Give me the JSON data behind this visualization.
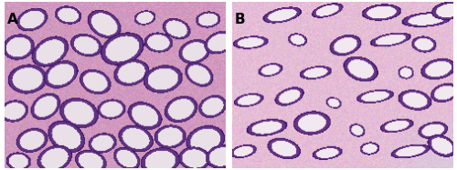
{
  "figure_width": 5.0,
  "figure_height": 1.87,
  "dpi": 100,
  "panel_a_label": "A",
  "panel_b_label": "B",
  "label_fontsize": 11,
  "label_fontweight": "bold",
  "label_color": "black",
  "border_color": "#aaaaaa",
  "border_linewidth": 0.5,
  "background_color": "#ffffff",
  "wspace": 0.03
}
